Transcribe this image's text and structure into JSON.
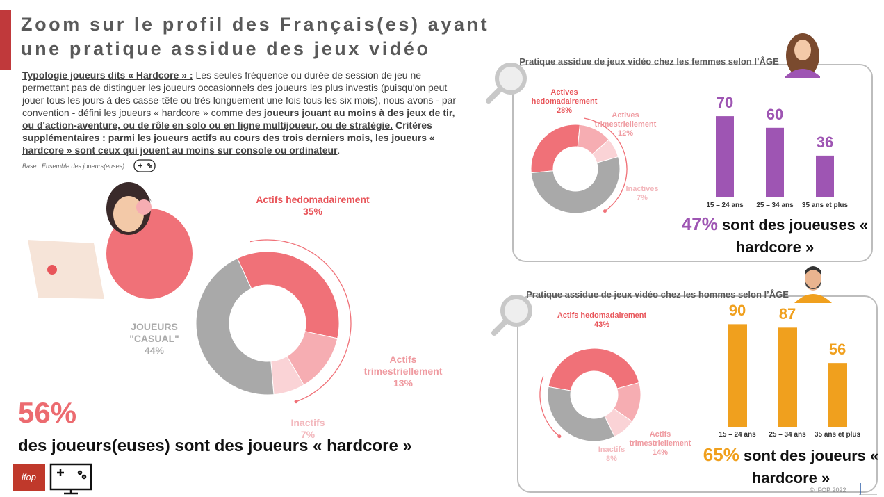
{
  "title_lines": [
    "Zoom sur le profil des Français(es) ayant",
    "une pratique assidue des jeux vidéo"
  ],
  "intro": [
    {
      "text": "Typologie joueurs dits « Hardcore » :",
      "style": "bold-underline"
    },
    {
      "text": " Les seules fréquence ou durée de session de jeu ne permettant pas de distinguer les joueurs occasionnels des joueurs les plus investis (puisqu'on peut jouer tous les jours à des casse-tête ou très longuement une fois tous les six mois), nous avons - par convention - défini les joueurs « hardcore » comme des ",
      "style": "normal"
    },
    {
      "text": "joueurs jouant au moins à des jeux de tir, ou d'action-aventure, ou de rôle en solo ou en ligne multijoueur, ou de stratégie.",
      "style": "bold-underline"
    },
    {
      "text": " Critères supplémentaires : ",
      "style": "bold"
    },
    {
      "text": "parmi les joueurs actifs au cours des trois derniers mois, les joueurs « hardcore » sont ceux qui jouent au moins sur console ou ordinateur",
      "style": "bold-underline"
    },
    {
      "text": ".",
      "style": "normal"
    }
  ],
  "base": "Base : Ensemble des joueurs(euses)",
  "highlights": [
    {
      "label": "56%",
      "text": "des joueurs(euses) sont des joueurs « hardcore »",
      "color": "#ec6b70"
    },
    {
      "label": "47%",
      "text": "sont des joueuses « hardcore »",
      "color": "#9e55b3"
    },
    {
      "label": "65%",
      "text": "sont des joueurs « hardcore »",
      "color": "#f0a01e"
    }
  ],
  "logo": "ifop",
  "footer": "© IFOP 2022",
  "chart_data": [
    {
      "type": "pie",
      "donut": true,
      "categories": [
        "Actifs hedomadairement",
        "Actifs trimestriellement",
        "Inactifs",
        "JOUEURS \"CASUAL\""
      ],
      "values": [
        35,
        13,
        7,
        44
      ],
      "value_labels": [
        "35%",
        "13%",
        "7%",
        "44%"
      ],
      "colors": [
        "#f07178",
        "#f6adb2",
        "#fad3d6",
        "#a9a9a9"
      ],
      "label_colors": [
        "#e8555a",
        "#ef9aa0",
        "#f3b8bd",
        "#aaaaaa"
      ]
    },
    {
      "type": "pie",
      "donut": true,
      "title": "Pratique assidue de jeux vidéo chez les femmes selon l’ÂGE",
      "categories": [
        "Actives hedomadairement",
        "Actives trimestriellement",
        "Inactives",
        null
      ],
      "values": [
        28,
        12,
        7,
        53
      ],
      "value_labels": [
        "28%",
        "12%",
        "7%",
        null
      ],
      "colors": [
        "#f07178",
        "#f6adb2",
        "#fad3d6",
        "#a9a9a9"
      ],
      "label_colors": [
        "#e8555a",
        "#ef9aa0",
        "#f3b8bd",
        "#aaaaaa"
      ]
    },
    {
      "type": "bar",
      "categories": [
        "15 – 24 ans",
        "25 – 34 ans",
        "35 ans et plus"
      ],
      "values": [
        70,
        60,
        36
      ],
      "color": "#9e55b3"
    },
    {
      "type": "pie",
      "donut": true,
      "title": "Pratique assidue de jeux vidéo chez les hommes selon l’ÂGE",
      "categories": [
        "Actifs hedomadairement",
        "Actifs trimestriellement",
        "Inactifs",
        null
      ],
      "values": [
        43,
        14,
        8,
        35
      ],
      "value_labels": [
        "43%",
        "14%",
        "8%",
        null
      ],
      "colors": [
        "#f07178",
        "#f6adb2",
        "#fad3d6",
        "#a9a9a9"
      ],
      "label_colors": [
        "#e8555a",
        "#ef9aa0",
        "#f3b8bd",
        "#aaaaaa"
      ]
    },
    {
      "type": "bar",
      "categories": [
        "15 – 24 ans",
        "25 – 34 ans",
        "35 ans et plus"
      ],
      "values": [
        90,
        87,
        56
      ],
      "color": "#f0a01e"
    }
  ]
}
